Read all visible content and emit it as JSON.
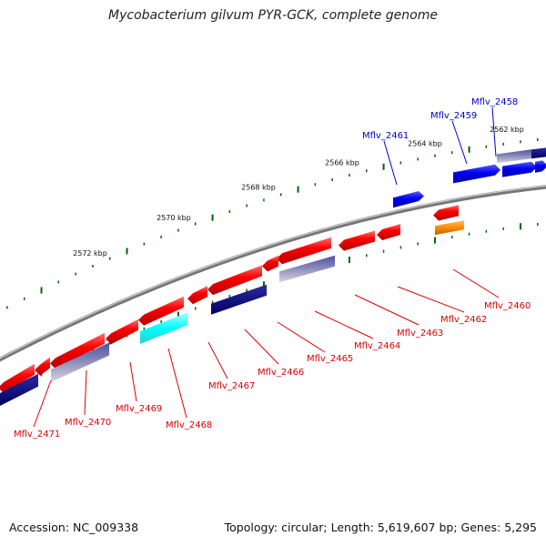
{
  "header": {
    "title": "Mycobacterium gilvum PYR-GCK, complete genome"
  },
  "footer": {
    "accession": "Accession: NC_009338",
    "topology": "Topology: circular; Length: 5,619,607 bp; Genes: 5,295"
  },
  "map": {
    "kbp_labels": [
      "2562 kbp",
      "2564 kbp",
      "2566 kbp",
      "2568 kbp",
      "2570 kbp",
      "2572 kbp"
    ],
    "colors": {
      "gene_forward": "#ff0000",
      "gene_reverse": "#0000ee",
      "cds_dark": "#000080",
      "cds_cyan": "#00ffff",
      "cds_orange": "#ff8c00",
      "backbone": "#888888",
      "tick": "#006400",
      "label_red": "#dd0000",
      "label_blue": "#0000cc"
    },
    "gene_labels": {
      "red": [
        "Mflv_2460",
        "Mflv_2462",
        "Mflv_2463",
        "Mflv_2464",
        "Mflv_2465",
        "Mflv_2466",
        "Mflv_2467",
        "Mflv_2468",
        "Mflv_2469",
        "Mflv_2470",
        "Mflv_2471"
      ],
      "blue": [
        "Mflv_2458",
        "Mflv_2459",
        "Mflv_2461"
      ]
    }
  }
}
